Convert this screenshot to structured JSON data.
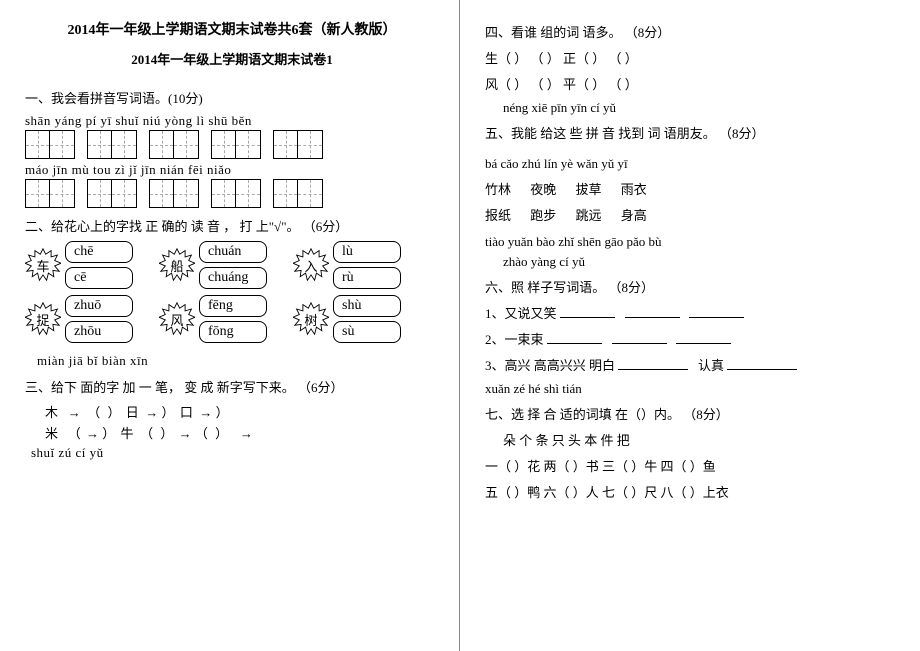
{
  "header": {
    "title": "2014年一年级上学期语文期末试卷共6套（新人教版）",
    "subtitle": "2014年一年级上学期语文期末试卷1"
  },
  "left": {
    "q1": {
      "heading": "一、我会看拼音写词语。(10分)",
      "row1_pinyin": "shān yáng    pí yī    shuǐ niú    yòng lì    shū  běn",
      "row2_pinyin": "máo jīn    mù  tou  zì   jǐ    jīn  nián    fēi  niǎo"
    },
    "q2": {
      "heading": "二、给花心上的字找 正 确的 读 音 ， 打 上\"√\"。 （6分）",
      "groups": [
        {
          "char": "车",
          "opts": [
            "chē",
            "cē"
          ]
        },
        {
          "char": "船",
          "opts": [
            "chuán",
            "chuáng"
          ]
        },
        {
          "char": "入",
          "opts": [
            "lù",
            "rù"
          ]
        },
        {
          "char": "捉",
          "opts": [
            "zhuō",
            "zhōu"
          ]
        },
        {
          "char": "风",
          "opts": [
            "fēng",
            "fōng"
          ]
        },
        {
          "char": "树",
          "opts": [
            "shù",
            "sù"
          ]
        }
      ]
    },
    "q3_pinyin": "miàn   jiā   bǐ  biàn   xīn",
    "q3_heading": "三、给下 面的字 加 一 笔， 变 成  新字写下来。 （6分）",
    "q3_line1_a": "木",
    "q3_line1_b": "日",
    "q3_line1_c": "口",
    "q3_line2_a": "米",
    "q3_line2_b": "牛",
    "q3_pinyin2": "shuǐ zú  cí yǔ"
  },
  "right": {
    "q4_heading": "四、看谁   组的词  语多。  （8分）",
    "q4_line1": "生（     ） （     ）   正（     ） （     ）",
    "q4_line2": "风（     ） （     ）   平（     ） （     ）",
    "q5_pinyin": "néng    xiē pīn  yīn    cí yǔ",
    "q5_heading": "五、我能 给这 些  拼  音  找到 词 语朋友。 （8分）",
    "q5_pinyin2": "bá cǎo    zhú lín    yè wǎn    yǔ yī",
    "q5_words1": [
      "竹林",
      "夜晚",
      "拔草",
      "雨衣"
    ],
    "q5_words2": [
      "报纸",
      "跑步",
      "跳远",
      "身高"
    ],
    "q5_pinyin3": "tiào yuǎn   bào zhǐ   shēn gāo   pǎo bù",
    "q6_pinyin": "zhào yàng  cí yǔ",
    "q6_heading": "六、照   样子写词语。 （8分）",
    "q6_line1_label": "1、又说又笑",
    "q6_line2_label": "2、一束束",
    "q6_line3_label": "3、高兴 高高兴兴  明白",
    "q6_line3_label2": "认真",
    "q7_pinyin": "xuǎn zé hé shì   tián",
    "q7_heading": "七、选 择 合  适的词填 在（）内。 （8分）",
    "q7_words": "朵   个   条   只  头     本   件  把",
    "q7_line1": "一（   ）花   两（   ）书   三（   ）牛   四（   ）鱼",
    "q7_line2": "五（   ）鸭   六（   ）人   七（   ）尺   八（   ）上衣"
  }
}
